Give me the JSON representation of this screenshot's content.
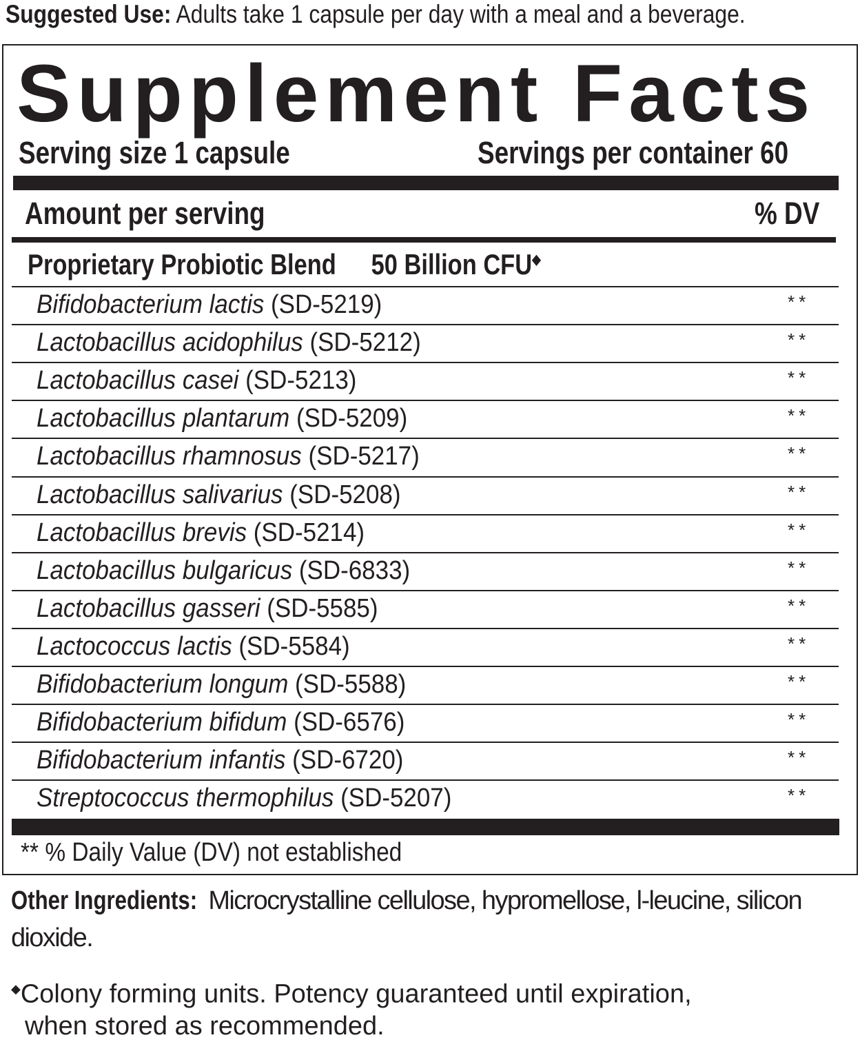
{
  "suggested_use": {
    "label": "Suggested Use:",
    "text": " Adults take 1 capsule per day with a meal and a beverage."
  },
  "title": "Supplement Facts",
  "serving_size": "Serving size 1 capsule",
  "servings_per_container": "Servings per container 60",
  "amount_per_serving": "Amount per serving",
  "dv_header": "% DV",
  "blend": {
    "name": "Proprietary Probiotic Blend",
    "amount": "50 Billion CFU",
    "mark": "◆"
  },
  "ingredients": [
    {
      "species": "Bifidobacterium lactis",
      "strain": " (SD-5219)",
      "dv": "**"
    },
    {
      "species": "Lactobacillus acidophilus",
      "strain": " (SD-5212)",
      "dv": "**"
    },
    {
      "species": "Lactobacillus casei",
      "strain": " (SD-5213)",
      "dv": "**"
    },
    {
      "species": "Lactobacillus plantarum",
      "strain": " (SD-5209)",
      "dv": "**"
    },
    {
      "species": "Lactobacillus rhamnosus",
      "strain": " (SD-5217)",
      "dv": "**"
    },
    {
      "species": "Lactobacillus salivarius",
      "strain": " (SD-5208)",
      "dv": "**"
    },
    {
      "species": "Lactobacillus brevis",
      "strain": " (SD-5214)",
      "dv": "**"
    },
    {
      "species": "Lactobacillus bulgaricus",
      "strain": " (SD-6833)",
      "dv": "**"
    },
    {
      "species": "Lactobacillus gasseri",
      "strain": " (SD-5585)",
      "dv": "**"
    },
    {
      "species": "Lactococcus lactis",
      "strain": " (SD-5584)",
      "dv": "**"
    },
    {
      "species": "Bifidobacterium longum",
      "strain": " (SD-5588)",
      "dv": "**"
    },
    {
      "species": "Bifidobacterium bifidum",
      "strain": " (SD-6576)",
      "dv": "**"
    },
    {
      "species": "Bifidobacterium infantis",
      "strain": " (SD-6720)",
      "dv": "**"
    },
    {
      "species": "Streptococcus thermophilus",
      "strain": " (SD-5207)",
      "dv": "**"
    }
  ],
  "footnote": "** % Daily Value (DV) not established",
  "other_ingredients": {
    "label": "Other Ingredients:",
    "text": " Microcrystalline cellulose, hypromellose, l-leucine, silicon dioxide."
  },
  "colony_note": {
    "mark": "◆",
    "line1": "Colony forming units. Potency guaranteed until expiration,",
    "line2": "when stored as recommended."
  }
}
